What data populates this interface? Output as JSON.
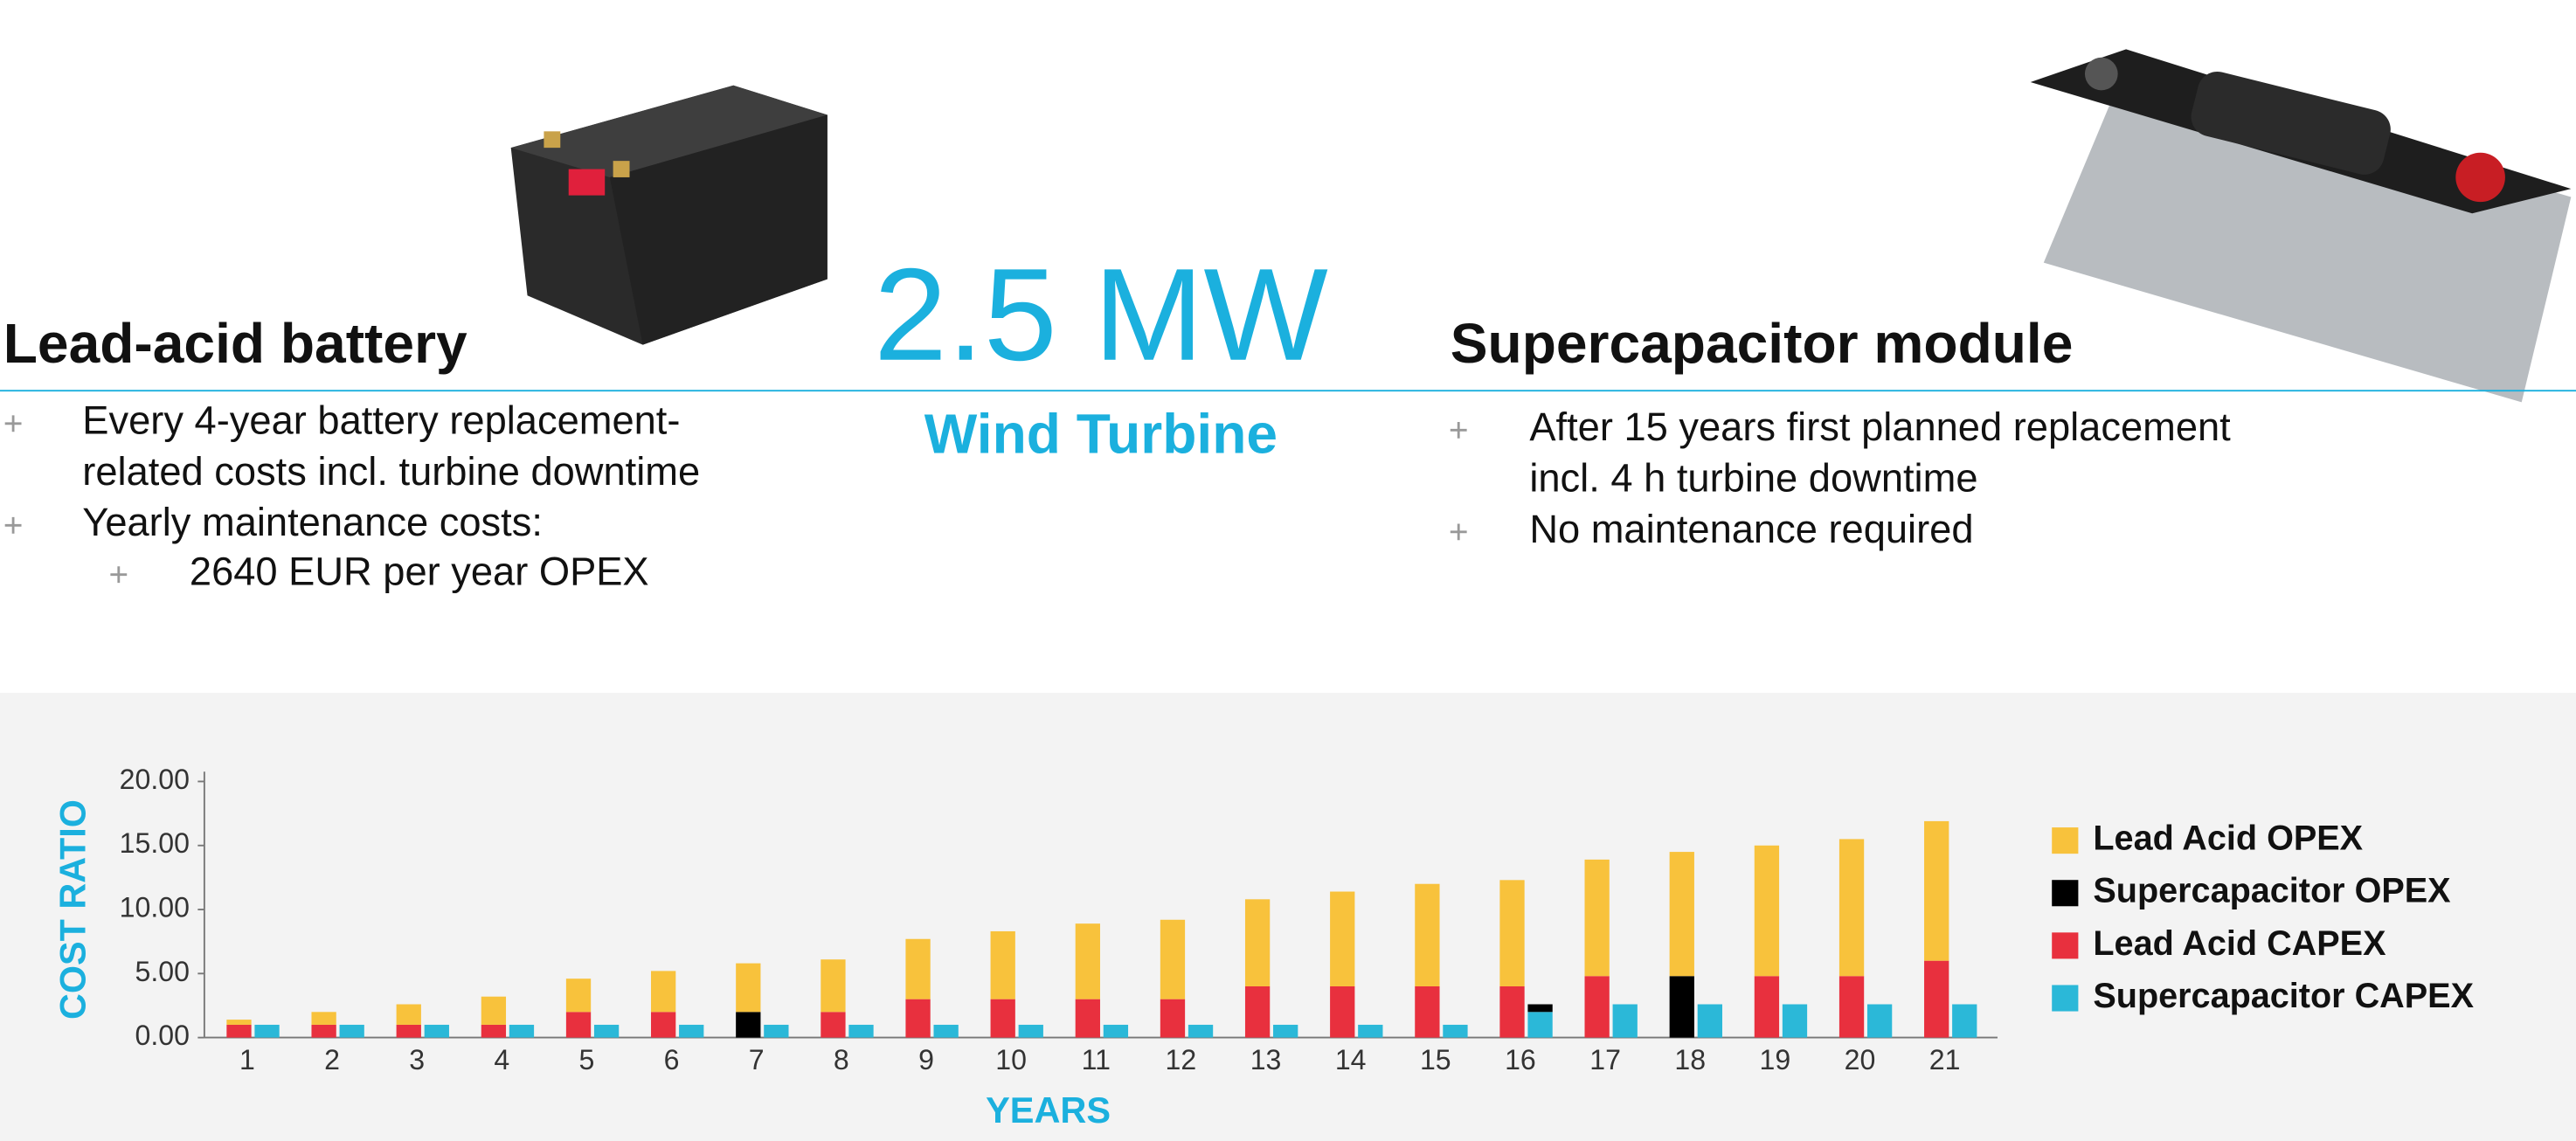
{
  "left": {
    "title": "Lead-acid battery",
    "bullets": [
      [
        "Every 4-year battery replacement-",
        "related costs incl. turbine downtime"
      ],
      [
        "Yearly maintenance costs:"
      ]
    ],
    "sub_bullets": [
      [
        "2640 EUR per year OPEX"
      ]
    ]
  },
  "center": {
    "value": "2.5 MW",
    "label": "Wind Turbine"
  },
  "right": {
    "title": "Supercapacitor module",
    "bullets": [
      [
        "After 15 years first planned replacement",
        "incl. 4 h turbine downtime"
      ],
      [
        "No maintenance required"
      ]
    ]
  },
  "chart_data": {
    "type": "stacked-bar",
    "x_label": "YEARS",
    "y_label": "COST RATIO",
    "categories": [
      "1",
      "2",
      "3",
      "4",
      "5",
      "6",
      "7",
      "8",
      "9",
      "10",
      "11",
      "12",
      "13",
      "14",
      "15",
      "16",
      "17",
      "18",
      "19",
      "20",
      "21"
    ],
    "series": [
      {
        "name": "Lead Acid OPEX",
        "color": "#f8c23c",
        "values": [
          0.4,
          1.0,
          1.6,
          2.2,
          2.6,
          3.2,
          3.8,
          4.1,
          4.7,
          5.3,
          5.9,
          6.2,
          6.8,
          7.4,
          8.0,
          8.3,
          9.1,
          9.7,
          10.2,
          10.7,
          10.9
        ]
      },
      {
        "name": "Supercapacitor OPEX",
        "color": "#000000",
        "values": [
          0,
          0,
          0,
          0,
          0,
          0,
          0,
          0,
          0,
          0,
          0,
          0,
          0,
          0,
          0,
          0.6,
          0,
          0,
          0,
          0,
          0
        ]
      },
      {
        "name": "Lead Acid CAPEX",
        "color": "#e8303e",
        "values": [
          1,
          1,
          1,
          1,
          2,
          2,
          2,
          2,
          3,
          3,
          3,
          3,
          4,
          4,
          4,
          4,
          4.8,
          4.8,
          4.8,
          4.8,
          6
        ],
        "colors": [
          "#e8303e",
          "#e8303e",
          "#e8303e",
          "#e8303e",
          "#e8303e",
          "#e8303e",
          "#000000",
          "#e8303e",
          "#e8303e",
          "#e8303e",
          "#e8303e",
          "#e8303e",
          "#e8303e",
          "#e8303e",
          "#e8303e",
          "#e8303e",
          "#e8303e",
          "#000000",
          "#e8303e",
          "#e8303e",
          "#e8303e"
        ]
      },
      {
        "name": "Supercapacitor CAPEX",
        "color": "#2bb8d8",
        "values": [
          1,
          1,
          1,
          1,
          1,
          1,
          1,
          1,
          1,
          1,
          1,
          1,
          1,
          1,
          1,
          2,
          2.6,
          2.6,
          2.6,
          2.6,
          2.6
        ]
      }
    ],
    "ylim": [
      0,
      20
    ],
    "yticks": [
      {
        "value": 0,
        "label": "0.00"
      },
      {
        "value": 5,
        "label": "5.00"
      },
      {
        "value": 10,
        "label": "10.00"
      },
      {
        "value": 15,
        "label": "15.00"
      },
      {
        "value": 20,
        "label": "20.00"
      }
    ],
    "grid": false
  }
}
